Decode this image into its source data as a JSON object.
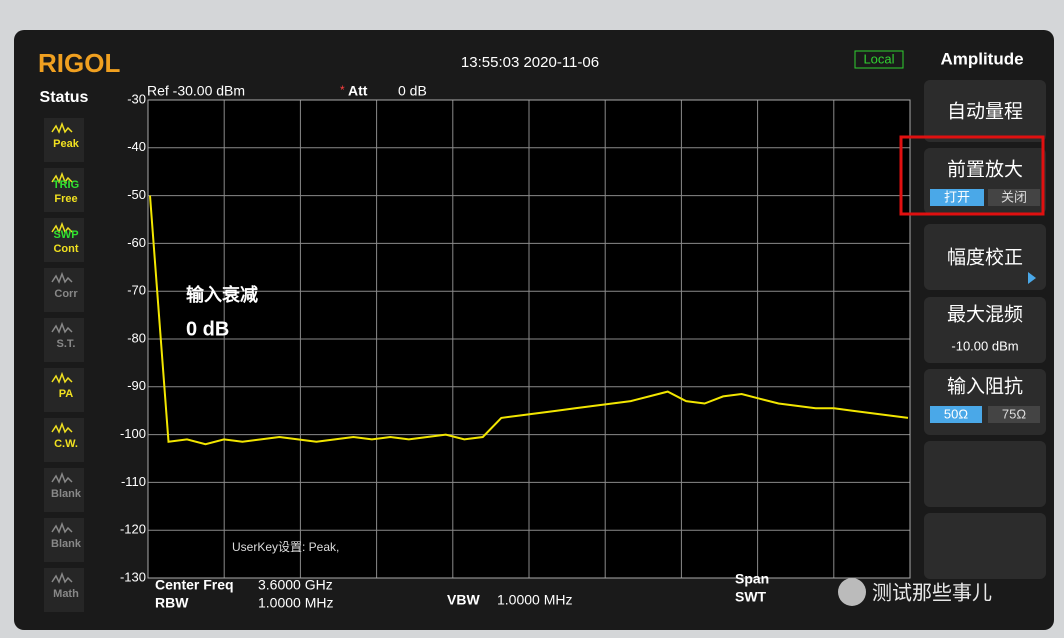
{
  "header": {
    "brand": "RIGOL",
    "datetime": "13:55:03 2020-11-06",
    "mode": "Local",
    "menu_title": "Amplitude"
  },
  "status": {
    "title": "Status",
    "items": [
      {
        "lines": [
          "Peak"
        ],
        "active": true
      },
      {
        "lines": [
          "TRIG",
          "Free"
        ],
        "active": true
      },
      {
        "lines": [
          "SWP",
          "Cont"
        ],
        "active": true
      },
      {
        "lines": [
          "Corr"
        ],
        "active": false
      },
      {
        "lines": [
          "S.T."
        ],
        "active": false
      },
      {
        "lines": [
          "PA"
        ],
        "active": true
      },
      {
        "lines": [
          "C.W."
        ],
        "active": true
      },
      {
        "lines": [
          "Blank"
        ],
        "active": false
      },
      {
        "lines": [
          "Blank"
        ],
        "active": false
      },
      {
        "lines": [
          "Math"
        ],
        "active": false
      }
    ]
  },
  "chart_data": {
    "type": "line",
    "ref_label": "Ref -30.00 dBm",
    "att_label": "Att",
    "att_value": "0 dB",
    "annotation": [
      "输入衰减",
      "0 dB"
    ],
    "userkey": "UserKey设置:  Peak,",
    "series": [
      {
        "color": "#f2e600",
        "values": [
          -50,
          -101.5,
          -101,
          -102,
          -101,
          -101.5,
          -101,
          -100.5,
          -101,
          -101.5,
          -101,
          -100.5,
          -101,
          -100.5,
          -101,
          -100.5,
          -100,
          -101,
          -100.5,
          -96.5,
          -96,
          -95.5,
          -95,
          -94.5,
          -94,
          -93.5,
          -93,
          -92,
          -91,
          -93,
          -93.5,
          -92,
          -91.5,
          -92.5,
          -93.5,
          -94,
          -94.5,
          -94.5,
          -95,
          -95.5,
          -96,
          -96.5
        ]
      }
    ],
    "ylim": [
      -130,
      -30
    ],
    "yticks": [
      -30,
      -40,
      -50,
      -60,
      -70,
      -80,
      -90,
      -100,
      -110,
      -120,
      -130
    ],
    "grid": true
  },
  "footer": {
    "center_freq_label": "Center Freq",
    "center_freq": "3.6000 GHz",
    "rbw_label": "RBW",
    "rbw": "1.0000 MHz",
    "vbw_label": "VBW",
    "vbw": "1.0000 MHz",
    "span_label": "Span",
    "swt_label": "SWT"
  },
  "menu": {
    "auto_range": "自动量程",
    "preamp": "前置放大",
    "preamp_on": "打开",
    "preamp_off": "关闭",
    "correction": "幅度校正",
    "max_mixer": "最大混频",
    "max_mixer_value": "-10.00 dBm",
    "impedance": "输入阻抗",
    "imp_50": "50Ω",
    "imp_75": "75Ω"
  },
  "watermark": "测试那些事儿"
}
